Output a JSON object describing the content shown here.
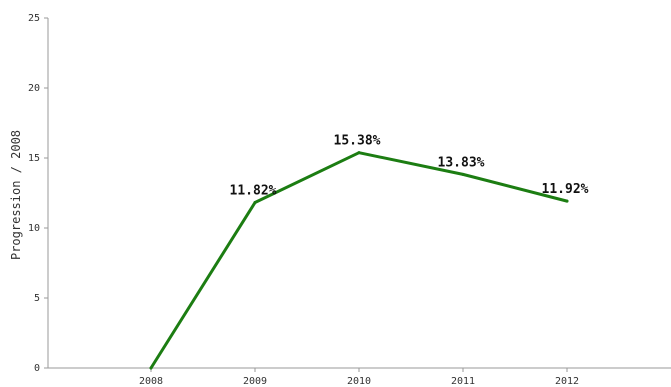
{
  "chart_data": {
    "type": "line",
    "title": "",
    "xlabel": "",
    "ylabel": "Progression / 2008",
    "categories": [
      "2008",
      "2009",
      "2010",
      "2011",
      "2012"
    ],
    "series": [
      {
        "values": [
          0,
          11.82,
          15.38,
          13.83,
          11.92
        ],
        "color": "#1c7d12"
      }
    ],
    "data_labels": [
      "",
      "11.82%",
      "15.38%",
      "13.83%",
      "11.92%"
    ],
    "yticks": [
      0,
      5,
      10,
      15,
      20,
      25
    ],
    "ylim": [
      0,
      25
    ],
    "grid": false,
    "legend": "none",
    "axis_color": "#9a9a9a"
  }
}
